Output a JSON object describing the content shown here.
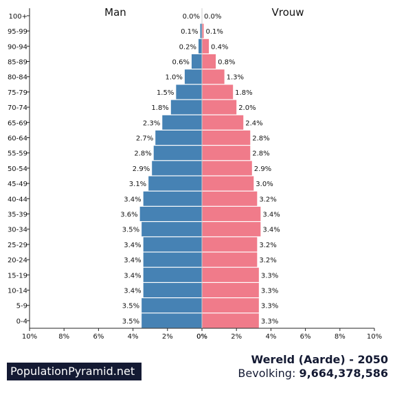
{
  "chart_data": {
    "type": "bar",
    "orientation": "horizontal-population-pyramid",
    "titles": {
      "left": "Man",
      "right": "Vrouw"
    },
    "categories": [
      "0-4",
      "5-9",
      "10-14",
      "15-19",
      "20-24",
      "25-29",
      "30-34",
      "35-39",
      "40-44",
      "45-49",
      "50-54",
      "55-59",
      "60-64",
      "65-69",
      "70-74",
      "75-79",
      "80-84",
      "85-89",
      "90-94",
      "95-99",
      "100+"
    ],
    "series": [
      {
        "name": "Man",
        "color": "#4682b4",
        "values": [
          3.5,
          3.5,
          3.4,
          3.4,
          3.4,
          3.4,
          3.5,
          3.6,
          3.4,
          3.1,
          2.9,
          2.8,
          2.7,
          2.3,
          1.8,
          1.5,
          1.0,
          0.6,
          0.2,
          0.1,
          0.0
        ],
        "labels": [
          "3.5%",
          "3.5%",
          "3.4%",
          "3.4%",
          "3.4%",
          "3.4%",
          "3.5%",
          "3.6%",
          "3.4%",
          "3.1%",
          "2.9%",
          "2.8%",
          "2.7%",
          "2.3%",
          "1.8%",
          "1.5%",
          "1.0%",
          "0.6%",
          "0.2%",
          "0.1%",
          "0.0%"
        ]
      },
      {
        "name": "Vrouw",
        "color": "#f07b8a",
        "values": [
          3.3,
          3.3,
          3.3,
          3.3,
          3.2,
          3.2,
          3.4,
          3.4,
          3.2,
          3.0,
          2.9,
          2.8,
          2.8,
          2.4,
          2.0,
          1.8,
          1.3,
          0.8,
          0.4,
          0.1,
          0.0
        ],
        "labels": [
          "3.3%",
          "3.3%",
          "3.3%",
          "3.3%",
          "3.2%",
          "3.2%",
          "3.4%",
          "3.4%",
          "3.2%",
          "3.0%",
          "2.9%",
          "2.8%",
          "2.8%",
          "2.4%",
          "2.0%",
          "1.8%",
          "1.3%",
          "0.8%",
          "0.4%",
          "0.1%",
          "0.0%"
        ]
      }
    ],
    "xlim": [
      0,
      10
    ],
    "x_ticks_left": [
      "10%",
      "8%",
      "6%",
      "4%",
      "2%",
      "0%"
    ],
    "x_ticks_right": [
      "0%",
      "2%",
      "4%",
      "6%",
      "8%",
      "10%"
    ],
    "x_tick_values": [
      10,
      8,
      6,
      4,
      2,
      0
    ],
    "grid": false
  },
  "footer": {
    "brand": "PopulationPyramid.net",
    "place": "Wereld (Aarde) - 2050",
    "population_label": "Bevolking:",
    "population_value": "9,664,378,586"
  }
}
